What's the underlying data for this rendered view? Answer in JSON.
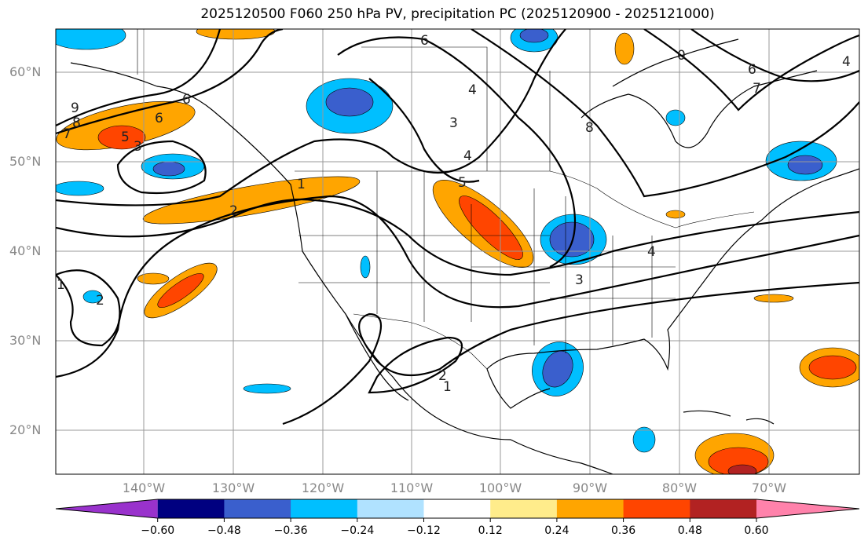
{
  "title": "2025120500 F060 250 hPa PV, precipitation PC (2025120900 - 2025121000)",
  "lat_labels": [
    "60°N",
    "50°N",
    "40°N",
    "30°N",
    "20°N"
  ],
  "lon_labels": [
    "140°W",
    "130°W",
    "120°W",
    "110°W",
    "100°W",
    "90°W",
    "80°W",
    "70°W"
  ],
  "colorbar": {
    "ticks": [
      "−0.60",
      "−0.48",
      "−0.36",
      "−0.24",
      "−0.12",
      "0.12",
      "0.24",
      "0.36",
      "0.48",
      "0.60"
    ],
    "colors": [
      "#9932cc",
      "#000080",
      "#3a5fcd",
      "#00bfff",
      "#b0e2ff",
      "#ffffff",
      "#ffec8b",
      "#ffa500",
      "#ff4500",
      "#b22222",
      "#ff82ab"
    ]
  },
  "contour_labels": [
    "9",
    "8",
    "7",
    "6",
    "5",
    "3",
    "2",
    "1",
    "1",
    "2",
    "6",
    "3",
    "4",
    "5",
    "6",
    "4",
    "3",
    "4",
    "6",
    "7",
    "4",
    "2",
    "1",
    "8",
    "0"
  ]
}
